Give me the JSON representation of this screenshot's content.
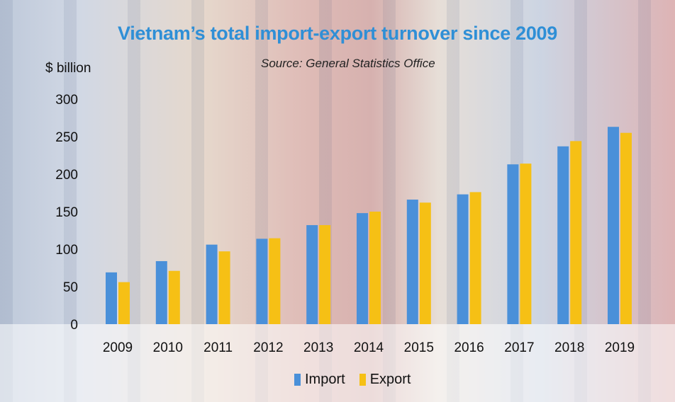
{
  "chart_data": {
    "type": "bar",
    "title": "Vietnam’s total import-export turnover since 2009",
    "subtitle": "Source: General Statistics Office",
    "ylabel": "$ billion",
    "ylim": [
      0,
      300
    ],
    "yticks": [
      0,
      50,
      100,
      150,
      200,
      250,
      300
    ],
    "categories": [
      "2009",
      "2010",
      "2011",
      "2012",
      "2013",
      "2014",
      "2015",
      "2016",
      "2017",
      "2018",
      "2019"
    ],
    "series": [
      {
        "name": "Import",
        "color": "#4a90d9",
        "values": [
          69,
          84,
          106,
          113.8,
          132,
          148,
          166,
          173,
          213,
          237,
          263
        ]
      },
      {
        "name": "Export",
        "color": "#f6c015",
        "values": [
          56,
          71,
          97,
          114.5,
          132,
          150,
          162,
          176,
          214,
          244,
          255
        ]
      }
    ],
    "grid": false,
    "legend": "bottom-center"
  }
}
